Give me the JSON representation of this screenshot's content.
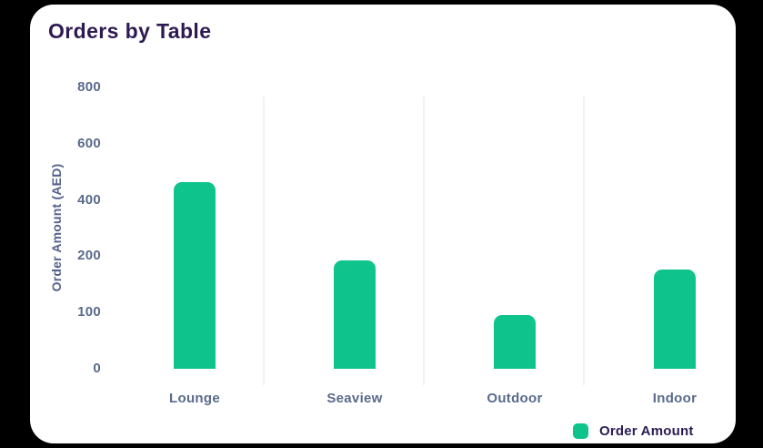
{
  "chart_data": {
    "type": "bar",
    "title": "Orders by Table",
    "categories": [
      "Lounge",
      "Seaview",
      "Outdoor",
      "Indoor"
    ],
    "series": [
      {
        "name": "Order Amount",
        "values": [
          465,
          193,
          96,
          176
        ]
      }
    ],
    "xlabel": "",
    "ylabel": "Order Amount (AED)",
    "yticks": [
      0,
      100,
      200,
      400,
      600,
      800
    ],
    "ytick_spacing": "uniform-between-listed-ticks",
    "ylim": [
      0,
      800
    ],
    "grid": "vertical-category-separators-only",
    "legend_position": "bottom-right",
    "bar_corner": "rounded-top",
    "colors": {
      "bar": "#0ec48c",
      "title_text": "#2e1a52",
      "axis_tick_text": "#5a6a8c",
      "axis_title_text": "#53628b",
      "category_text": "#5a6a8c",
      "legend_text": "#2b1d55",
      "gridline": "#f1f1f3",
      "card_background": "#ffffff",
      "page_background": "#000000"
    }
  }
}
